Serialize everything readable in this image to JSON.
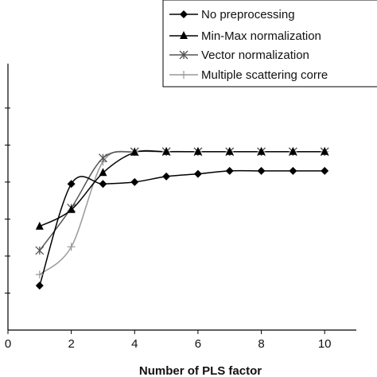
{
  "chart_data": {
    "type": "line",
    "title": "",
    "xlabel": "Number of PLS factor",
    "ylabel": "",
    "xlim": [
      0,
      11
    ],
    "ylim": [
      0,
      7.2
    ],
    "x_ticks": [
      0,
      2,
      4,
      6,
      8,
      10
    ],
    "y_ticks": [
      1,
      2,
      3,
      4,
      5,
      6
    ],
    "grid": false,
    "legend_position": "top-right",
    "series": [
      {
        "name": "No preprocessing",
        "marker": "diamond",
        "color": "#000000",
        "x": [
          1,
          2,
          3,
          4,
          5,
          6,
          7,
          8,
          9,
          10
        ],
        "y": [
          1.2,
          3.95,
          3.95,
          4.0,
          4.15,
          4.22,
          4.3,
          4.3,
          4.3,
          4.3
        ]
      },
      {
        "name": "Min-Max normalization",
        "marker": "triangle",
        "color": "#000000",
        "x": [
          1,
          2,
          3,
          4,
          5,
          6,
          7,
          8,
          9,
          10
        ],
        "y": [
          2.8,
          3.25,
          4.25,
          4.8,
          4.82,
          4.82,
          4.82,
          4.82,
          4.82,
          4.82
        ]
      },
      {
        "name": "Vector normalization",
        "marker": "asterisk",
        "color": "#555555",
        "x": [
          1,
          2,
          3,
          4,
          5,
          6,
          7,
          8,
          9,
          10
        ],
        "y": [
          2.15,
          3.3,
          4.65,
          4.82,
          4.82,
          4.82,
          4.82,
          4.82,
          4.82,
          4.82
        ]
      },
      {
        "name": "Multiple scattering corre",
        "marker": "plus",
        "color": "#999999",
        "x": [
          1,
          2,
          3,
          4,
          5,
          6,
          7,
          8,
          9,
          10
        ],
        "y": [
          1.5,
          2.25,
          4.55,
          4.82,
          4.82,
          4.82,
          4.82,
          4.82,
          4.82,
          4.82
        ]
      }
    ]
  }
}
